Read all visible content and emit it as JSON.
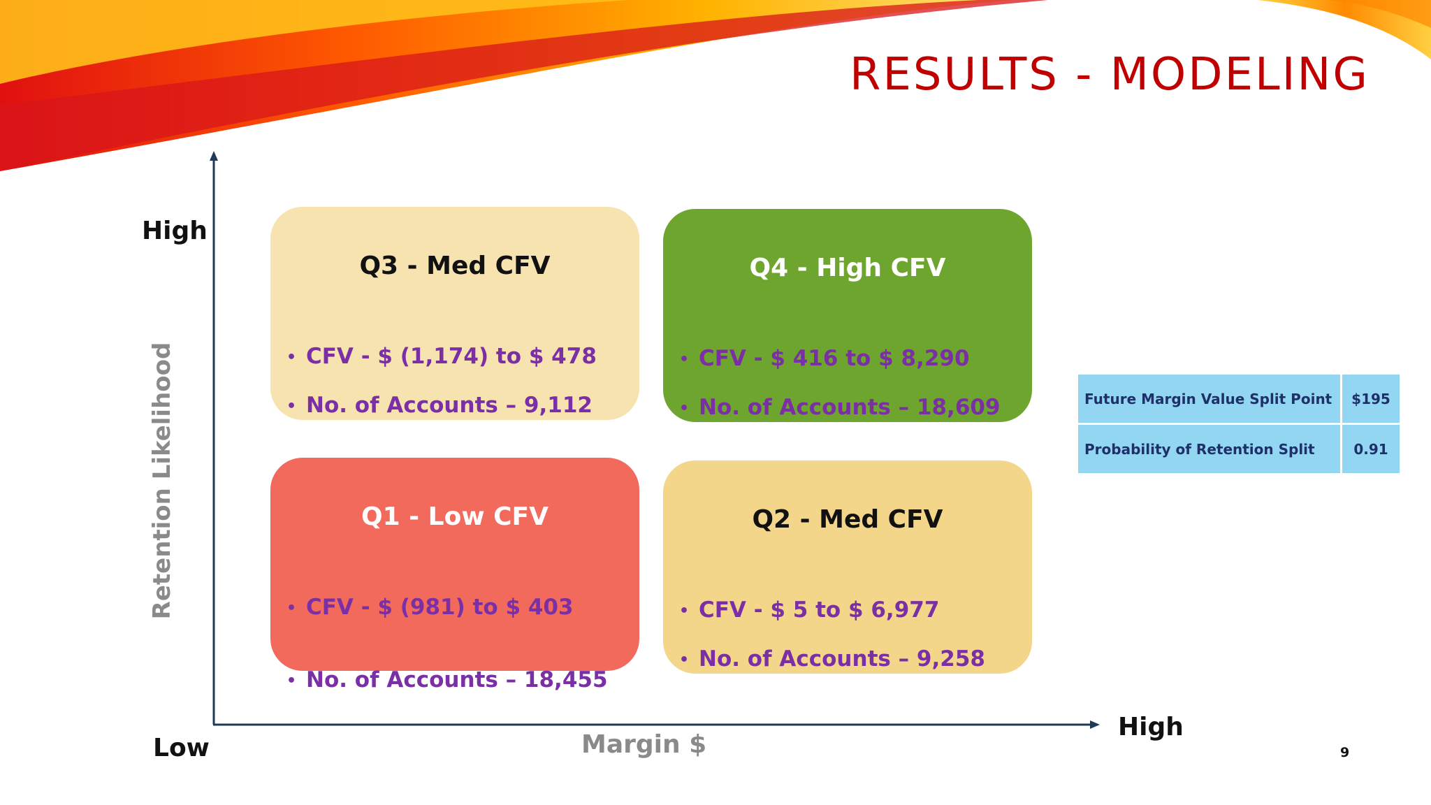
{
  "title": "RESULTS - MODELING",
  "axes": {
    "y_title": "Retention Likelihood",
    "y_high": "High",
    "x_low": "Low",
    "x_title": "Margin $",
    "x_high": "High"
  },
  "quadrants": {
    "q3": {
      "title": "Q3 - Med CFV",
      "cfv": "CFV - $ (1,174) to $ 478",
      "accounts": "No. of Accounts – 9,112",
      "color": "#f7e3b0"
    },
    "q4": {
      "title": "Q4 - High CFV",
      "cfv": "CFV - $ 416 to $ 8,290",
      "accounts": "No. of Accounts – 18,609",
      "color": "#6ea52e"
    },
    "q1": {
      "title": "Q1 - Low CFV",
      "cfv": "CFV - $ (981) to $ 403",
      "accounts": "No. of Accounts – 18,455",
      "color": "#f26a5b"
    },
    "q2": {
      "title": "Q2 - Med CFV",
      "cfv": "CFV - $ 5 to $ 6,977",
      "accounts": "No. of Accounts – 9,258",
      "color": "#f4d68b"
    }
  },
  "bullet_glyph": "•",
  "split_table": [
    {
      "label": "Future Margin Value Split Point",
      "value": "$195"
    },
    {
      "label": "Probability of Retention Split",
      "value": "0.91"
    }
  ],
  "page_number": "9",
  "colors": {
    "title": "#c00000",
    "bullet_text": "#7b2fa5",
    "table_fill": "#93d6f1",
    "table_text": "#1f2f6a",
    "axis": "#1f3b57"
  }
}
